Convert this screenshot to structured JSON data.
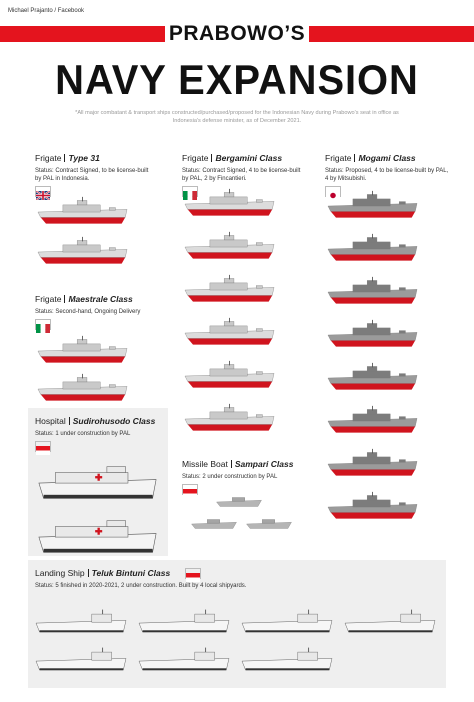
{
  "credit": "Michael Prajanto / Facebook",
  "header": {
    "kicker": "PRABOWO’S",
    "title": "NAVY EXPANSION",
    "note": "*All major combatant & transport ships constructed/purchased/proposed for the Indonesian Navy during Prabowo's seat in office as Indonesia's defense minister, as of December 2021."
  },
  "sections": [
    {
      "category": "Frigate",
      "name": "Type 31",
      "status": "Status: Contract Signed, to be license-built by PAL in Indonesia."
    },
    {
      "category": "Frigate",
      "name": "Bergamini Class",
      "status": "Status: Contract Signed, 4 to be license-built by PAL, 2 by Fincantieri."
    },
    {
      "category": "Frigate",
      "name": "Mogami Class",
      "status": "Status: Proposed, 4 to be license-built by PAL, 4 by Mitsubishi."
    },
    {
      "category": "Frigate",
      "name": "Maestrale Class",
      "status": "Status: Second-hand, Ongoing Delivery"
    },
    {
      "category": "Hospital",
      "name": "Sudirohusodo Class",
      "status": "Status: 1 under construction by PAL"
    },
    {
      "category": "Missile Boat",
      "name": "Sampari Class",
      "status": "Status: 2 under construction by PAL"
    },
    {
      "category": "Landing Ship",
      "name": "Teluk Bintuni Class",
      "status": "Status: 5 finished in 2020-2021, 2 under construction. Built by 4 local shipyards."
    }
  ]
}
